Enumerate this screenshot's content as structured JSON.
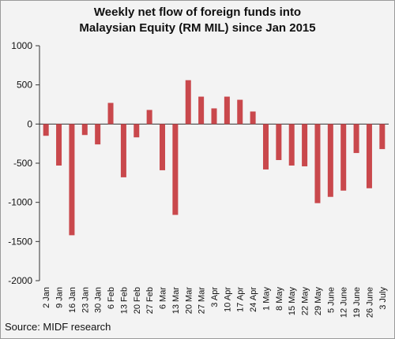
{
  "title_line1": "Weekly net flow of foreign funds into",
  "title_line2": "Malaysian Equity (RM MIL) since Jan 2015",
  "source": "Source: MIDF research",
  "colors": {
    "bar": "#c9484c",
    "axis": "#333333",
    "background": "#f3f3f3"
  },
  "chart_data": {
    "type": "bar",
    "title": "Weekly net flow of foreign funds into Malaysian Equity (RM MIL) since Jan 2015",
    "xlabel": "",
    "ylabel": "",
    "ylim": [
      -2000,
      1000
    ],
    "yticks": [
      1000,
      500,
      0,
      -500,
      -1000,
      -1500,
      -2000
    ],
    "grid": false,
    "categories": [
      "2 Jan",
      "9 Jan",
      "16 Jan",
      "23 Jan",
      "30 Jan",
      "6 Feb",
      "13 Feb",
      "20 Feb",
      "27 Feb",
      "6 Mar",
      "13 Mar",
      "20 Mar",
      "27 Mar",
      "3 Apr",
      "10 Apr",
      "17 Apr",
      "24 Apr",
      "1 May",
      "8 May",
      "15 May",
      "22 May",
      "29 May",
      "5 June",
      "12 June",
      "19 June",
      "26 June",
      "3 July"
    ],
    "values": [
      -150,
      -530,
      -1420,
      -140,
      -260,
      270,
      -680,
      -170,
      180,
      -590,
      -1160,
      560,
      350,
      200,
      350,
      310,
      160,
      -580,
      -460,
      -530,
      -540,
      -1010,
      -930,
      -850,
      -370,
      -820,
      -320
    ]
  }
}
